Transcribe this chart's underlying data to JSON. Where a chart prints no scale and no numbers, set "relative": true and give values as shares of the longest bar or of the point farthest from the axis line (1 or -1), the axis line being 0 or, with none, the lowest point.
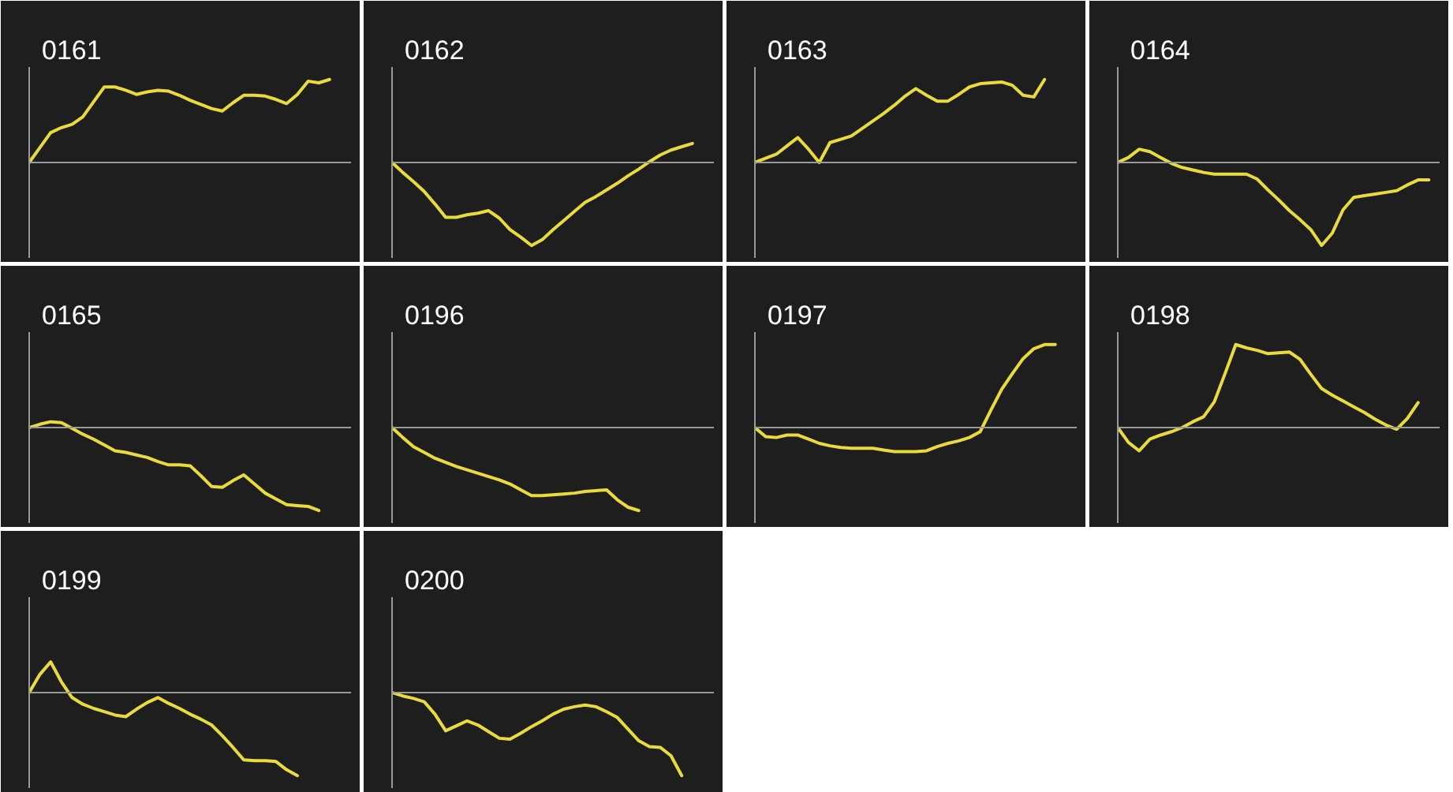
{
  "chart_data": [
    {
      "type": "line",
      "title": "0161",
      "relative": true,
      "color": "#eadb3c",
      "categories": [
        null,
        null,
        null,
        null,
        null,
        null,
        null,
        null,
        null,
        null,
        null,
        null,
        null,
        null,
        null,
        null,
        null,
        null,
        null,
        null,
        null,
        null,
        null,
        null,
        null,
        null,
        null,
        null,
        null,
        null,
        null
      ],
      "values": [
        0,
        0.18,
        0.36,
        0.42,
        0.46,
        0.55,
        0.73,
        0.91,
        0.91,
        0.87,
        0.82,
        0.85,
        0.87,
        0.86,
        0.81,
        0.75,
        0.7,
        0.65,
        0.62,
        0.72,
        0.81,
        0.81,
        0.8,
        0.76,
        0.71,
        0.82,
        0.98,
        0.96,
        1,
        null,
        null
      ]
    },
    {
      "type": "line",
      "title": "0162",
      "relative": true,
      "color": "#eadb3c",
      "categories": [
        null,
        null,
        null,
        null,
        null,
        null,
        null,
        null,
        null,
        null,
        null,
        null,
        null,
        null,
        null,
        null,
        null,
        null,
        null,
        null,
        null,
        null,
        null,
        null,
        null,
        null,
        null,
        null,
        null,
        null,
        null
      ],
      "values": [
        0,
        -0.12,
        -0.23,
        -0.35,
        -0.5,
        -0.66,
        -0.66,
        -0.63,
        -0.61,
        -0.58,
        -0.67,
        -0.81,
        -0.9,
        -1,
        -0.93,
        -0.81,
        -0.7,
        -0.59,
        -0.48,
        -0.41,
        -0.33,
        -0.25,
        -0.16,
        -0.08,
        0.01,
        0.09,
        0.15,
        0.19,
        0.23,
        null,
        null
      ]
    },
    {
      "type": "line",
      "title": "0163",
      "relative": true,
      "color": "#eadb3c",
      "categories": [
        null,
        null,
        null,
        null,
        null,
        null,
        null,
        null,
        null,
        null,
        null,
        null,
        null,
        null,
        null,
        null,
        null,
        null,
        null,
        null,
        null,
        null,
        null,
        null,
        null,
        null,
        null,
        null,
        null,
        null,
        null
      ],
      "values": [
        0,
        0.05,
        0.1,
        0.2,
        0.3,
        0.16,
        0,
        0.24,
        0.28,
        0.32,
        0.41,
        0.5,
        0.59,
        0.69,
        0.8,
        0.89,
        0.81,
        0.74,
        0.74,
        0.82,
        0.91,
        0.95,
        0.96,
        0.97,
        0.93,
        0.81,
        0.79,
        1,
        null,
        null,
        null
      ]
    },
    {
      "type": "line",
      "title": "0164",
      "relative": true,
      "color": "#eadb3c",
      "categories": [
        null,
        null,
        null,
        null,
        null,
        null,
        null,
        null,
        null,
        null,
        null,
        null,
        null,
        null,
        null,
        null,
        null,
        null,
        null,
        null,
        null,
        null,
        null,
        null,
        null,
        null,
        null,
        null,
        null,
        null,
        null
      ],
      "values": [
        0,
        0.06,
        0.16,
        0.13,
        0.06,
        -0.01,
        -0.06,
        -0.09,
        -0.12,
        -0.14,
        -0.14,
        -0.14,
        -0.14,
        -0.2,
        -0.33,
        -0.45,
        -0.58,
        -0.69,
        -0.81,
        -1,
        -0.85,
        -0.57,
        -0.42,
        -0.4,
        -0.38,
        -0.36,
        -0.34,
        -0.27,
        -0.21,
        -0.21,
        null
      ]
    },
    {
      "type": "line",
      "title": "0165",
      "relative": true,
      "color": "#eadb3c",
      "categories": [
        null,
        null,
        null,
        null,
        null,
        null,
        null,
        null,
        null,
        null,
        null,
        null,
        null,
        null,
        null,
        null,
        null,
        null,
        null,
        null,
        null,
        null,
        null,
        null,
        null,
        null,
        null,
        null,
        null,
        null,
        null
      ],
      "values": [
        0,
        0.04,
        0.07,
        0.06,
        -0.01,
        -0.08,
        -0.14,
        -0.21,
        -0.28,
        -0.3,
        -0.33,
        -0.36,
        -0.41,
        -0.45,
        -0.45,
        -0.46,
        -0.58,
        -0.71,
        -0.72,
        -0.64,
        -0.57,
        -0.68,
        -0.79,
        -0.86,
        -0.93,
        -0.94,
        -0.95,
        -1,
        null,
        null,
        null
      ]
    },
    {
      "type": "line",
      "title": "0196",
      "relative": true,
      "color": "#eadb3c",
      "categories": [
        null,
        null,
        null,
        null,
        null,
        null,
        null,
        null,
        null,
        null,
        null,
        null,
        null,
        null,
        null,
        null,
        null,
        null,
        null,
        null,
        null,
        null,
        null,
        null,
        null,
        null,
        null,
        null,
        null,
        null,
        null
      ],
      "values": [
        0,
        -0.12,
        -0.23,
        -0.3,
        -0.37,
        -0.42,
        -0.47,
        -0.51,
        -0.55,
        -0.59,
        -0.63,
        -0.68,
        -0.75,
        -0.82,
        -0.82,
        -0.81,
        -0.8,
        -0.79,
        -0.77,
        -0.76,
        -0.75,
        -0.87,
        -0.96,
        -1,
        null,
        null,
        null,
        null,
        null,
        null,
        null
      ]
    },
    {
      "type": "line",
      "title": "0197",
      "relative": true,
      "color": "#eadb3c",
      "categories": [
        null,
        null,
        null,
        null,
        null,
        null,
        null,
        null,
        null,
        null,
        null,
        null,
        null,
        null,
        null,
        null,
        null,
        null,
        null,
        null,
        null,
        null,
        null,
        null,
        null,
        null,
        null,
        null,
        null,
        null,
        null
      ],
      "values": [
        0,
        -0.11,
        -0.12,
        -0.09,
        -0.09,
        -0.14,
        -0.19,
        -0.22,
        -0.24,
        -0.25,
        -0.25,
        -0.25,
        -0.27,
        -0.29,
        -0.29,
        -0.29,
        -0.28,
        -0.23,
        -0.19,
        -0.16,
        -0.12,
        -0.05,
        0.21,
        0.46,
        0.65,
        0.83,
        0.95,
        1,
        1,
        null,
        null
      ]
    },
    {
      "type": "line",
      "title": "0198",
      "relative": true,
      "color": "#eadb3c",
      "categories": [
        null,
        null,
        null,
        null,
        null,
        null,
        null,
        null,
        null,
        null,
        null,
        null,
        null,
        null,
        null,
        null,
        null,
        null,
        null,
        null,
        null,
        null,
        null,
        null,
        null,
        null,
        null,
        null,
        null,
        null,
        null
      ],
      "values": [
        0,
        -0.18,
        -0.28,
        -0.14,
        -0.09,
        -0.05,
        0,
        0.07,
        0.13,
        0.31,
        0.65,
        1,
        0.96,
        0.93,
        0.89,
        0.9,
        0.91,
        0.82,
        0.64,
        0.47,
        0.39,
        0.32,
        0.25,
        0.18,
        0.1,
        0.03,
        -0.02,
        0.11,
        0.3,
        null,
        null
      ]
    },
    {
      "type": "line",
      "title": "0199",
      "relative": true,
      "color": "#eadb3c",
      "categories": [
        null,
        null,
        null,
        null,
        null,
        null,
        null,
        null,
        null,
        null,
        null,
        null,
        null,
        null,
        null,
        null,
        null,
        null,
        null,
        null,
        null,
        null,
        null,
        null,
        null,
        null,
        null,
        null,
        null,
        null,
        null
      ],
      "values": [
        0,
        0.22,
        0.37,
        0.13,
        -0.06,
        -0.14,
        -0.19,
        -0.23,
        -0.27,
        -0.29,
        -0.2,
        -0.12,
        -0.06,
        -0.13,
        -0.19,
        -0.26,
        -0.32,
        -0.39,
        -0.52,
        -0.66,
        -0.81,
        -0.82,
        -0.82,
        -0.83,
        -0.93,
        -1,
        null,
        null,
        null,
        null,
        null
      ]
    },
    {
      "type": "line",
      "title": "0200",
      "relative": true,
      "color": "#eadb3c",
      "categories": [
        null,
        null,
        null,
        null,
        null,
        null,
        null,
        null,
        null,
        null,
        null,
        null,
        null,
        null,
        null,
        null,
        null,
        null,
        null,
        null,
        null,
        null,
        null,
        null,
        null,
        null,
        null,
        null,
        null,
        null,
        null
      ],
      "values": [
        0,
        -0.04,
        -0.07,
        -0.11,
        -0.26,
        -0.46,
        -0.4,
        -0.34,
        -0.39,
        -0.47,
        -0.55,
        -0.56,
        -0.49,
        -0.41,
        -0.34,
        -0.26,
        -0.2,
        -0.17,
        -0.15,
        -0.17,
        -0.23,
        -0.3,
        -0.44,
        -0.58,
        -0.65,
        -0.66,
        -0.76,
        -1,
        null,
        null,
        null
      ]
    }
  ]
}
